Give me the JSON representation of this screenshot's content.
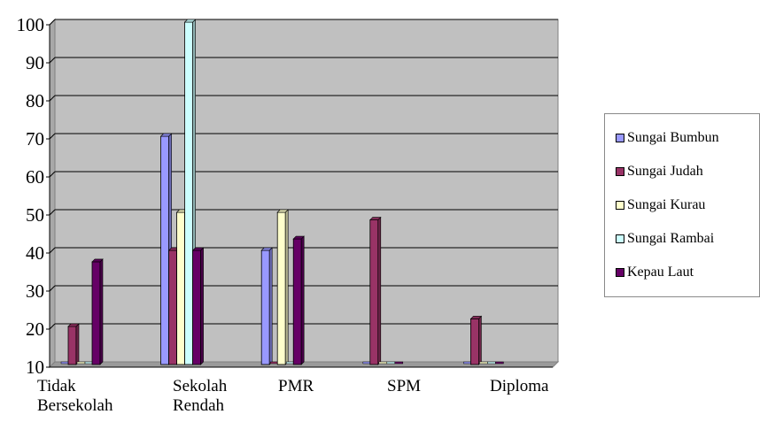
{
  "chart_data": {
    "type": "bar",
    "categories": [
      [
        "Tidak",
        "Bersekolah"
      ],
      [
        "Sekolah",
        "Rendah"
      ],
      [
        "PMR"
      ],
      [
        "SPM"
      ],
      [
        "Diploma"
      ]
    ],
    "yticks": [
      "10",
      "20",
      "30",
      "40",
      "50",
      "60",
      "70",
      "80",
      "90",
      "100"
    ],
    "ylim": [
      10,
      100
    ],
    "grid": true,
    "legend_position": "right",
    "background_color": "#c0c0c0",
    "series": [
      {
        "name": "Sungai Bumbun",
        "color": "#9999ff",
        "values": [
          null,
          70,
          40,
          null,
          null
        ]
      },
      {
        "name": "Sungai Judah",
        "color": "#993366",
        "values": [
          20,
          40,
          null,
          48,
          22
        ]
      },
      {
        "name": "Sungai Kurau",
        "color": "#ffffcc",
        "values": [
          null,
          50,
          50,
          null,
          null
        ]
      },
      {
        "name": "Sungai Rambai",
        "color": "#ccffff",
        "values": [
          null,
          100,
          null,
          null,
          null
        ]
      },
      {
        "name": "Kepau Laut",
        "color": "#660066",
        "values": [
          37,
          40,
          43,
          null,
          null
        ]
      }
    ]
  }
}
